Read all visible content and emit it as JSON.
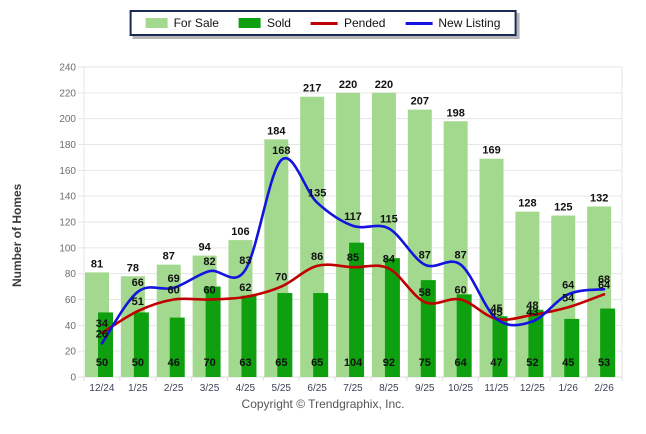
{
  "chart_data": {
    "type": "bar+line",
    "title": "",
    "ylabel": "Number of Homes",
    "xlabel": "",
    "ylim": [
      0,
      240
    ],
    "ytick_step": 20,
    "yticks": [
      0,
      20,
      40,
      60,
      80,
      100,
      120,
      140,
      160,
      180,
      200,
      220,
      240
    ],
    "grid": true,
    "legend_position": "top",
    "categories": [
      "12/24",
      "1/25",
      "2/25",
      "3/25",
      "4/25",
      "5/25",
      "6/25",
      "7/25",
      "8/25",
      "9/25",
      "10/25",
      "11/25",
      "12/25",
      "1/26",
      "2/26"
    ],
    "series": [
      {
        "name": "For Sale",
        "type": "bar",
        "color": "#A3D98E",
        "values": [
          81,
          78,
          87,
          94,
          106,
          184,
          217,
          220,
          220,
          207,
          198,
          169,
          128,
          125,
          132
        ]
      },
      {
        "name": "Sold",
        "type": "bar",
        "color": "#0FA00F",
        "values": [
          50,
          50,
          46,
          70,
          63,
          65,
          65,
          104,
          92,
          75,
          64,
          47,
          52,
          45,
          53
        ]
      },
      {
        "name": "Pended",
        "type": "line",
        "color": "#C00000",
        "values": [
          34,
          51,
          60,
          60,
          62,
          70,
          86,
          85,
          84,
          58,
          60,
          45,
          48,
          54,
          64
        ]
      },
      {
        "name": "New Listing",
        "type": "line",
        "color": "#1414E0",
        "values": [
          26,
          66,
          69,
          82,
          83,
          168,
          135,
          117,
          115,
          87,
          87,
          45,
          43,
          64,
          68
        ]
      }
    ]
  },
  "footer": {
    "copyright": "Copyright © Trendgraphix, Inc."
  },
  "colors": {
    "label_text": "#111111",
    "ytick_text": "#6e6e6e",
    "xtick_text": "#3d4156",
    "gridline": "#e6e6e6",
    "axis_line": "#dddddd",
    "ylabel_text": "#3c3c3c",
    "legend_border": "#1b2a55"
  }
}
